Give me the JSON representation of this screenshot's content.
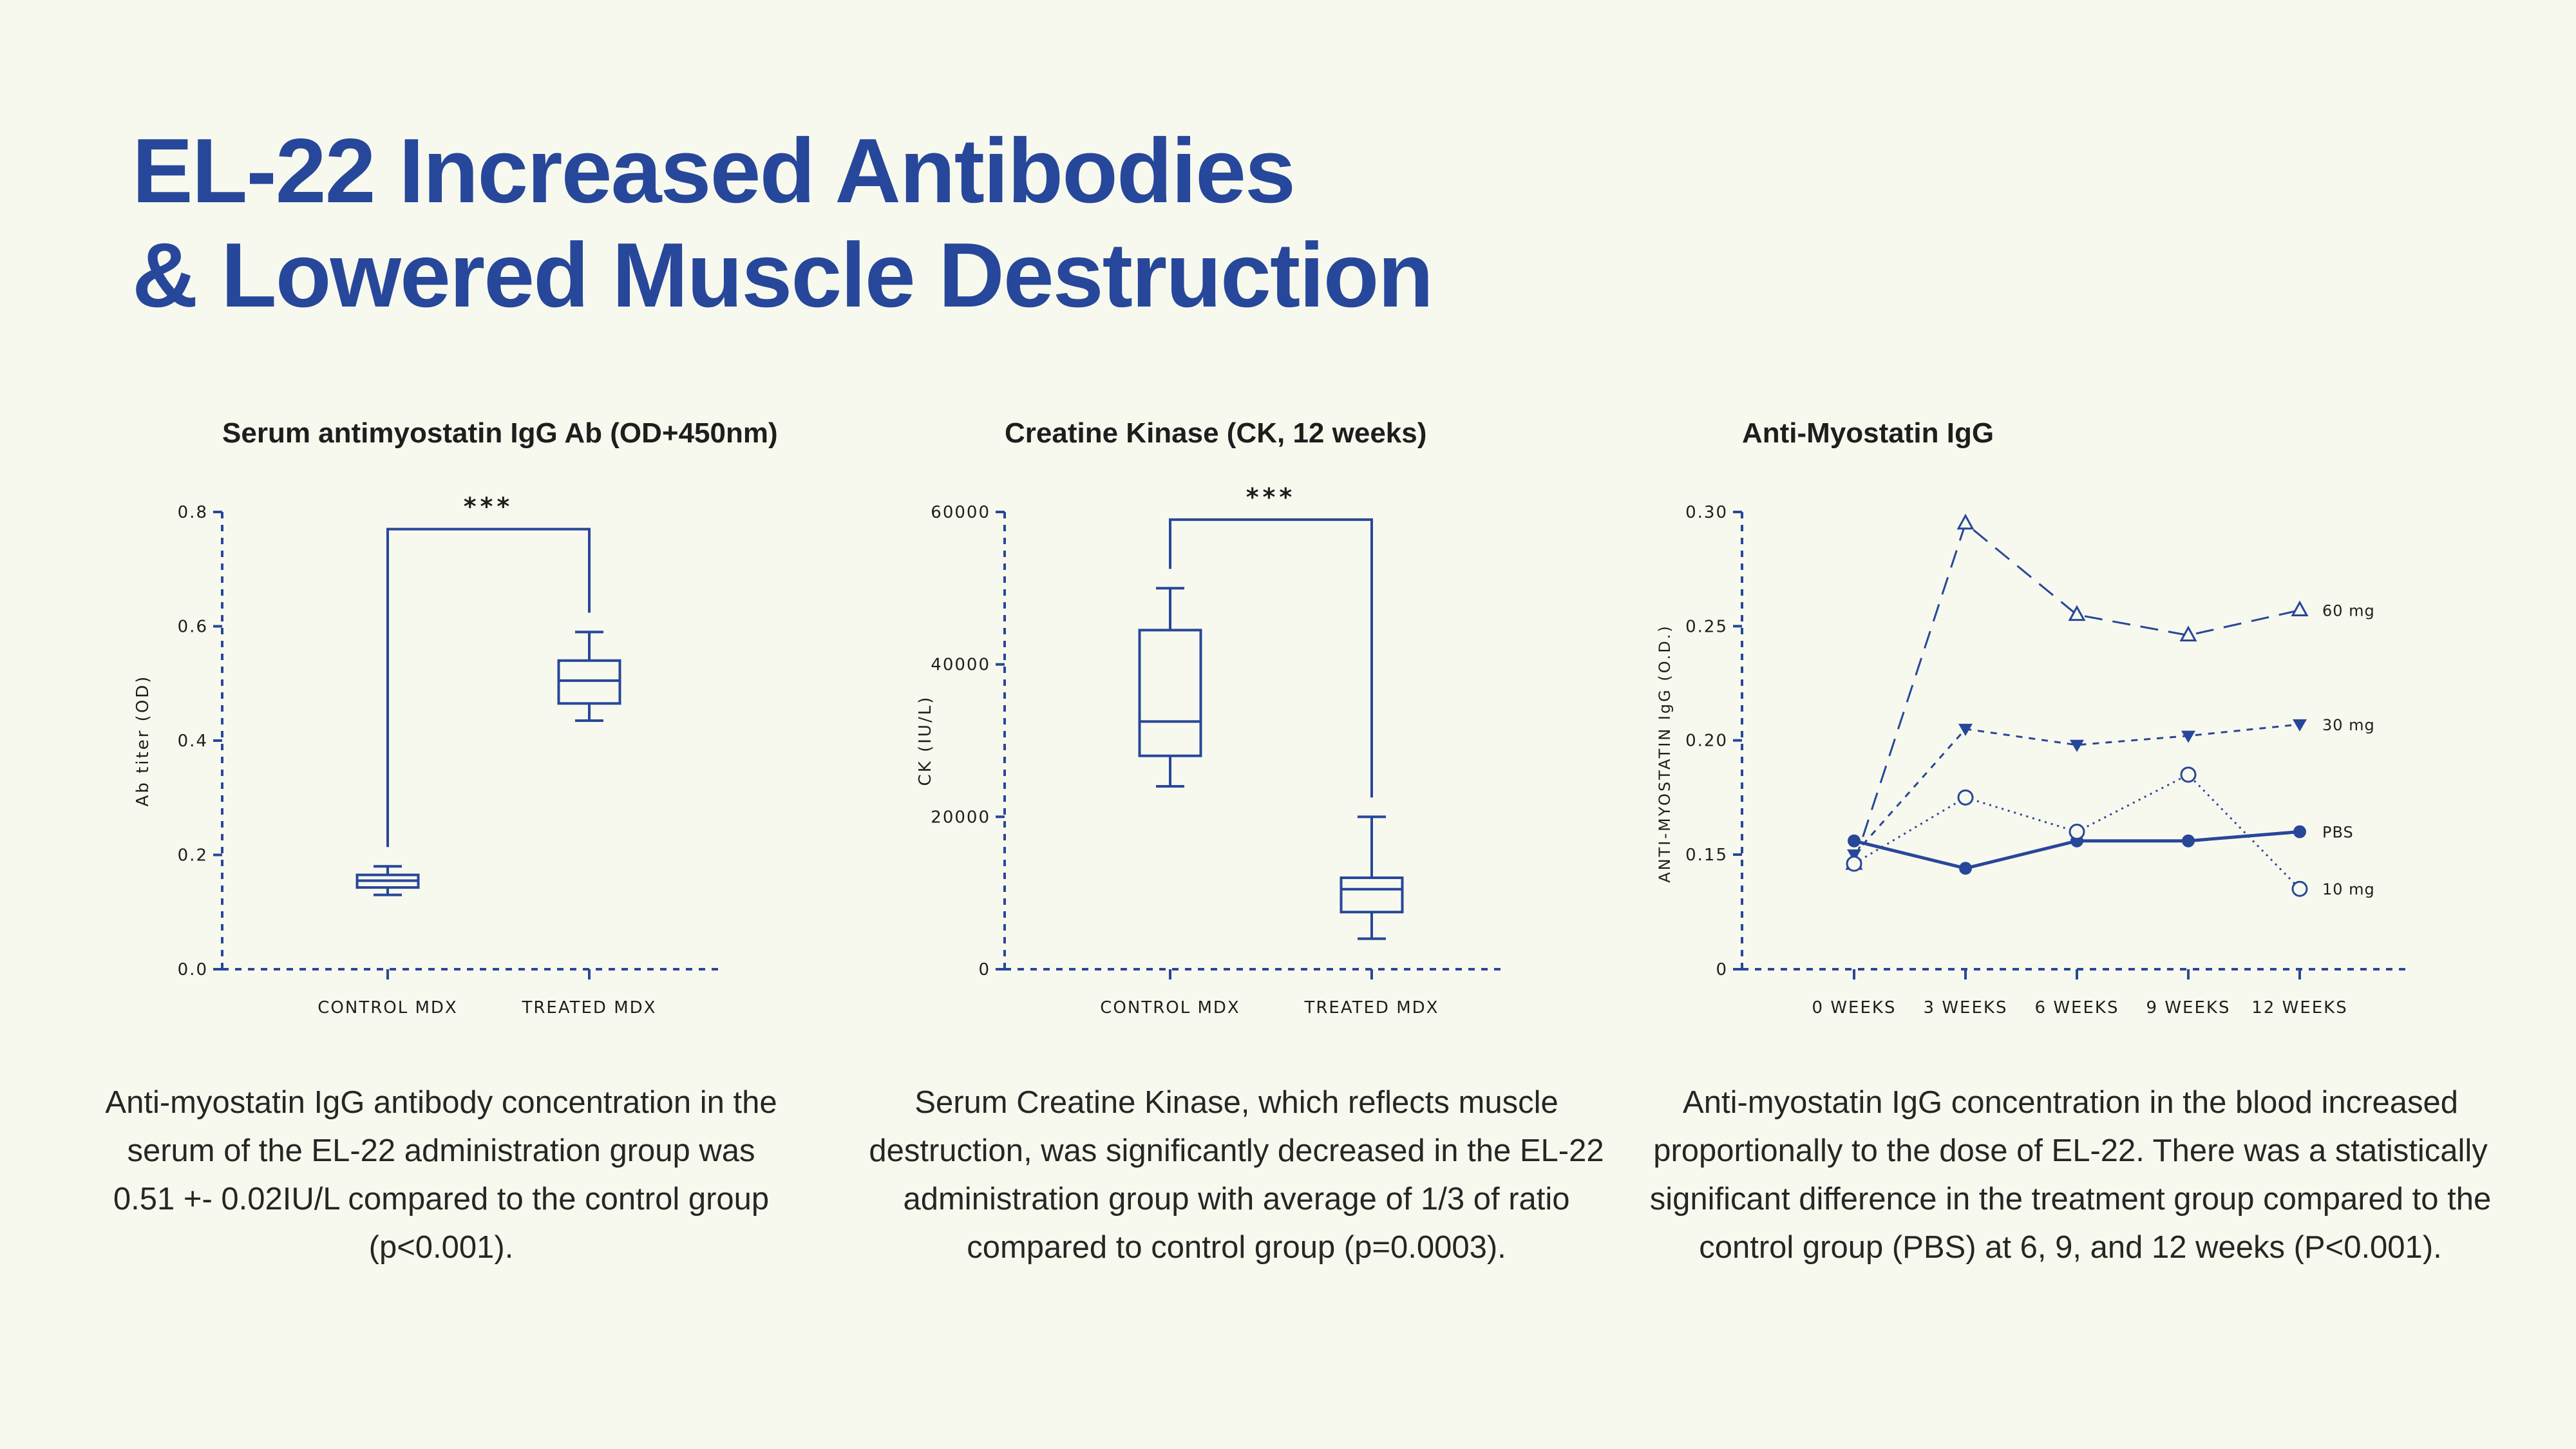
{
  "title": {
    "line1": "EL-22 Increased Antibodies",
    "line2": "& Lowered Muscle Destruction"
  },
  "colors": {
    "background": "#f8f9ee",
    "accent": "#27479a",
    "text": "#1e1e1e"
  },
  "chart_data": [
    {
      "type": "box",
      "title": "Serum antimyostatin IgG Ab (OD+450nm)",
      "ylabel": "Ab titer (OD)",
      "xlabel": "",
      "ylim": [
        0,
        0.8
      ],
      "yticks": [
        "0.0",
        "0.2",
        "0.4",
        "0.6",
        "0.8"
      ],
      "categories": [
        "CONTROL MDX",
        "TREATED MDX"
      ],
      "boxes": [
        {
          "min": 0.13,
          "q1": 0.143,
          "median": 0.155,
          "q3": 0.165,
          "max": 0.18
        },
        {
          "min": 0.435,
          "q1": 0.465,
          "median": 0.505,
          "q3": 0.54,
          "max": 0.59
        }
      ],
      "significance": "***",
      "bracket_y": 0.77
    },
    {
      "type": "box",
      "title": "Creatine Kinase (CK, 12 weeks)",
      "ylabel": "CK (IU/L)",
      "xlabel": "",
      "ylim": [
        0,
        60000
      ],
      "yticks": [
        "0",
        "20000",
        "40000",
        "60000"
      ],
      "categories": [
        "CONTROL MDX",
        "TREATED MDX"
      ],
      "boxes": [
        {
          "min": 24000,
          "q1": 28000,
          "median": 32500,
          "q3": 44500,
          "max": 50000
        },
        {
          "min": 4000,
          "q1": 7500,
          "median": 10500,
          "q3": 12000,
          "max": 20000
        }
      ],
      "significance": "***",
      "bracket_y": 59000
    },
    {
      "type": "line",
      "title": "Anti-Myostatin IgG",
      "ylabel": "ANTI-MYOSTATIN IgG (O.D.)",
      "xlabel": "",
      "y_axis_break": true,
      "ylim": [
        0.1,
        0.3
      ],
      "yticks": [
        "0",
        "0.15",
        "0.20",
        "0.25",
        "0.30"
      ],
      "categories": [
        "0 WEEKS",
        "3 WEEKS",
        "6 WEEKS",
        "9 WEEKS",
        "12 WEEKS"
      ],
      "series": [
        {
          "name": "60 mg",
          "values": [
            0.146,
            0.295,
            0.255,
            0.246,
            0.257
          ],
          "marker": "triangle-open",
          "line": "dashed"
        },
        {
          "name": "30 mg",
          "values": [
            0.15,
            0.205,
            0.198,
            0.202,
            0.207
          ],
          "marker": "triangle-filled-down",
          "line": "dotted-dash"
        },
        {
          "name": "PBS",
          "values": [
            0.156,
            0.144,
            0.156,
            0.156,
            0.16
          ],
          "marker": "circle-filled",
          "line": "solid"
        },
        {
          "name": "10 mg",
          "values": [
            0.146,
            0.175,
            0.16,
            0.185,
            0.135
          ],
          "marker": "circle-open",
          "line": "dotted"
        }
      ]
    }
  ],
  "captions": [
    "Anti-myostatin IgG antibody concentration in the serum of the EL-22 administration group was 0.51 +- 0.02IU/L compared to the control group (p<0.001).",
    "Serum Creatine Kinase, which reflects muscle destruction, was significantly decreased in the EL-22 administration group with average of 1/3 of ratio compared to control group (p=0.0003).",
    "Anti-myostatin IgG concentration in the blood increased proportionally to the dose of EL-22. There was a statistically significant difference in the treatment group compared to the control group (PBS) at 6, 9, and 12 weeks (P<0.001)."
  ]
}
